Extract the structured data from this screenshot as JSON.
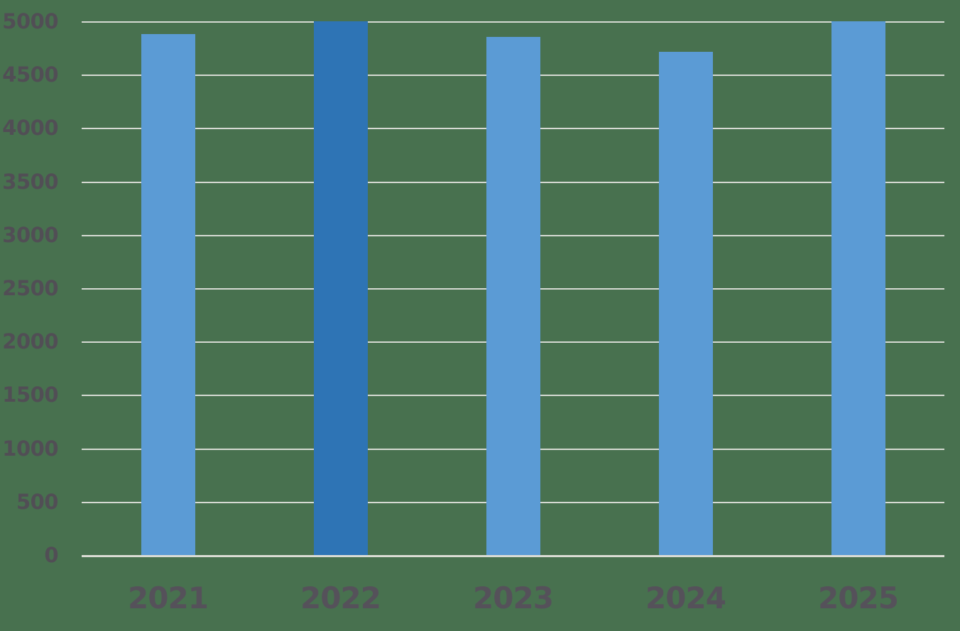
{
  "chart_data": {
    "type": "bar",
    "title": "",
    "xlabel": "",
    "ylabel": "",
    "categories": [
      "2021",
      "2022",
      "2023",
      "2024",
      "2025"
    ],
    "values": [
      4880,
      5000,
      4855,
      4715,
      5000
    ],
    "bar_colors": [
      "#5b9bd5",
      "#2e74b5",
      "#5b9bd5",
      "#5b9bd5",
      "#5b9bd5"
    ],
    "highlighted_category": "2022",
    "ylim": [
      0,
      5000
    ],
    "ytick_step": 500,
    "ytick_labels": [
      "0",
      "500",
      "1000",
      "1500",
      "2000",
      "2500",
      "3000",
      "3500",
      "4000",
      "4500",
      "5000"
    ],
    "grid": true,
    "legend": false,
    "legend_position": "none"
  },
  "colors": {
    "background": "#48714f",
    "bar_default": "#5b9bd5",
    "bar_highlight": "#2e74b5",
    "gridline": "#d6dad3",
    "axis_line": "#dadcd4",
    "y_tick_label": "#514e55",
    "x_tick_label": "#55515a"
  }
}
